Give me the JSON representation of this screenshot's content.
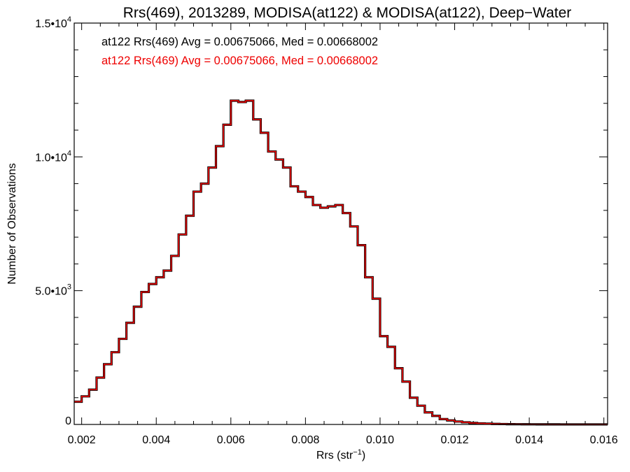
{
  "chart_data": {
    "type": "line",
    "step": true,
    "title": "Rrs(469), 2013289, MODISA(at122) & MODISA(at122), Deep−Water",
    "annotations": [
      {
        "text": "at122 Rrs(469) Avg = 0.00675066, Med = 0.00668002",
        "color": "#000000"
      },
      {
        "text": "at122 Rrs(469) Avg = 0.00675066, Med = 0.00668002",
        "color": "#ee0000"
      }
    ],
    "xlabel": {
      "base": "Rrs (str",
      "sup": "−1",
      "end": ")"
    },
    "ylabel": "Number of Observations",
    "xlim": [
      0.0018,
      0.0161
    ],
    "ylim": [
      0,
      15000
    ],
    "x_ticks": [
      0.002,
      0.004,
      0.006,
      0.008,
      0.01,
      0.012,
      0.014,
      0.016
    ],
    "x_tick_labels": [
      "0.002",
      "0.004",
      "0.006",
      "0.008",
      "0.010",
      "0.012",
      "0.014",
      "0.016"
    ],
    "y_ticks": [
      {
        "value": 0,
        "mantissa": "0",
        "exp": ""
      },
      {
        "value": 5000,
        "mantissa": "5.0•10",
        "exp": "3"
      },
      {
        "value": 10000,
        "mantissa": "1.0•10",
        "exp": "4"
      },
      {
        "value": 15000,
        "mantissa": "1.5•10",
        "exp": "4"
      }
    ],
    "grid": false,
    "series": [
      {
        "color": "#000000",
        "x": [
          0.0018,
          0.002,
          0.0022,
          0.0024,
          0.0026,
          0.0028,
          0.003,
          0.0032,
          0.0034,
          0.0036,
          0.0038,
          0.004,
          0.0042,
          0.0044,
          0.0046,
          0.0048,
          0.005,
          0.0052,
          0.0054,
          0.0056,
          0.0058,
          0.006,
          0.0062,
          0.0064,
          0.0066,
          0.0068,
          0.007,
          0.0072,
          0.0074,
          0.0076,
          0.0078,
          0.008,
          0.0082,
          0.0084,
          0.0086,
          0.0088,
          0.009,
          0.0092,
          0.0094,
          0.0096,
          0.0098,
          0.01,
          0.0102,
          0.0104,
          0.0106,
          0.0108,
          0.011,
          0.0112,
          0.0114,
          0.0116,
          0.0118,
          0.012,
          0.0122,
          0.0124,
          0.0126,
          0.0128,
          0.013,
          0.0132,
          0.0134,
          0.0136,
          0.0138,
          0.014,
          0.0142,
          0.0144,
          0.0146,
          0.0148,
          0.015,
          0.0152,
          0.0154,
          0.0156,
          0.0158,
          0.016
        ],
        "y": [
          850,
          1050,
          1300,
          1750,
          2250,
          2700,
          3200,
          3800,
          4400,
          4950,
          5250,
          5500,
          5750,
          6300,
          7100,
          7800,
          8700,
          9000,
          9600,
          10400,
          11200,
          12100,
          12050,
          12100,
          11400,
          10900,
          10200,
          9900,
          9600,
          8900,
          8700,
          8500,
          8200,
          8100,
          8150,
          8200,
          7900,
          7400,
          6700,
          5500,
          4700,
          3300,
          2900,
          2100,
          1600,
          1000,
          700,
          450,
          320,
          200,
          150,
          110,
          80,
          55,
          40,
          30,
          20,
          15,
          10,
          8,
          6,
          5,
          4,
          3,
          3,
          2,
          2,
          1,
          1,
          1,
          1,
          1
        ],
        "width": 3.2
      },
      {
        "color": "#ee0000",
        "x": [
          0.0018,
          0.002,
          0.0022,
          0.0024,
          0.0026,
          0.0028,
          0.003,
          0.0032,
          0.0034,
          0.0036,
          0.0038,
          0.004,
          0.0042,
          0.0044,
          0.0046,
          0.0048,
          0.005,
          0.0052,
          0.0054,
          0.0056,
          0.0058,
          0.006,
          0.0062,
          0.0064,
          0.0066,
          0.0068,
          0.007,
          0.0072,
          0.0074,
          0.0076,
          0.0078,
          0.008,
          0.0082,
          0.0084,
          0.0086,
          0.0088,
          0.009,
          0.0092,
          0.0094,
          0.0096,
          0.0098,
          0.01,
          0.0102,
          0.0104,
          0.0106,
          0.0108,
          0.011,
          0.0112,
          0.0114,
          0.0116,
          0.0118,
          0.012,
          0.0122,
          0.0124,
          0.0126,
          0.0128,
          0.013,
          0.0132,
          0.0134,
          0.0136,
          0.0138,
          0.014,
          0.0142,
          0.0144,
          0.0146,
          0.0148,
          0.015,
          0.0152,
          0.0154,
          0.0156,
          0.0158,
          0.016
        ],
        "y": [
          850,
          1050,
          1300,
          1750,
          2250,
          2700,
          3200,
          3800,
          4400,
          4950,
          5250,
          5500,
          5750,
          6300,
          7100,
          7800,
          8700,
          9000,
          9600,
          10400,
          11200,
          12100,
          12050,
          12100,
          11400,
          10900,
          10200,
          9900,
          9600,
          8900,
          8700,
          8500,
          8200,
          8100,
          8150,
          8200,
          7900,
          7400,
          6700,
          5500,
          4700,
          3300,
          2900,
          2100,
          1600,
          1000,
          700,
          450,
          320,
          200,
          150,
          110,
          80,
          55,
          40,
          30,
          20,
          15,
          10,
          8,
          6,
          5,
          4,
          3,
          3,
          2,
          2,
          1,
          1,
          1,
          1,
          1
        ],
        "width": 1.6
      }
    ]
  }
}
